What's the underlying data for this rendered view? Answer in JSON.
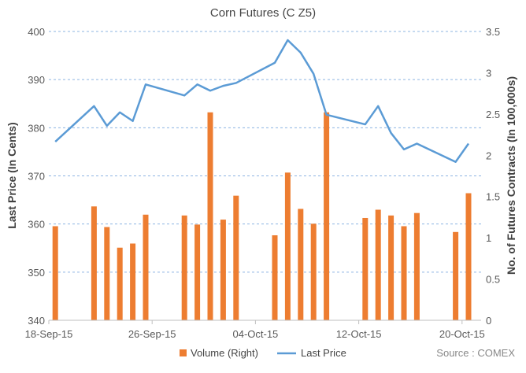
{
  "chart_data": {
    "type": "bar+line",
    "title": "Corn Futures  (C Z5)",
    "ylabel_left": "Last Price (In Cents)",
    "ylabel_right": "No. of Futures Contracts (In 100,000s)",
    "ylim_left": [
      340,
      400
    ],
    "ylim_right": [
      0,
      3.5
    ],
    "yticks_left": [
      "340",
      "350",
      "360",
      "370",
      "380",
      "390",
      "400"
    ],
    "yticks_right": [
      "0",
      "0.5",
      "1",
      "1.5",
      "2",
      "2.5",
      "3",
      "3.5"
    ],
    "xtick_labels": [
      "18-Sep-15",
      "26-Sep-15",
      "04-Oct-15",
      "12-Oct-15",
      "20-Oct-15"
    ],
    "x": [
      "18-Sep-15",
      "21-Sep-15",
      "22-Sep-15",
      "23-Sep-15",
      "24-Sep-15",
      "25-Sep-15",
      "28-Sep-15",
      "29-Sep-15",
      "30-Sep-15",
      "01-Oct-15",
      "02-Oct-15",
      "05-Oct-15",
      "06-Oct-15",
      "07-Oct-15",
      "08-Oct-15",
      "09-Oct-15",
      "12-Oct-15",
      "13-Oct-15",
      "14-Oct-15",
      "15-Oct-15",
      "16-Oct-15",
      "19-Oct-15",
      "20-Oct-15"
    ],
    "day_offsets": [
      0,
      3,
      4,
      5,
      6,
      7,
      10,
      11,
      12,
      13,
      14,
      17,
      18,
      19,
      20,
      21,
      24,
      25,
      26,
      27,
      28,
      31,
      32
    ],
    "series": [
      {
        "name": "Volume (Right)",
        "type": "bar",
        "axis": "right",
        "color": "#ED7D31",
        "values": [
          1.14,
          1.38,
          1.13,
          0.88,
          0.93,
          1.28,
          1.27,
          1.16,
          2.52,
          1.22,
          1.51,
          1.03,
          1.79,
          1.35,
          1.17,
          2.52,
          1.24,
          1.34,
          1.27,
          1.14,
          1.3,
          1.07,
          1.54
        ]
      },
      {
        "name": "Last Price",
        "type": "line",
        "axis": "left",
        "color": "#5B9BD5",
        "values": [
          377.1,
          384.5,
          380.4,
          383.2,
          381.4,
          389.0,
          386.7,
          389.0,
          387.7,
          388.7,
          389.3,
          393.5,
          398.2,
          395.6,
          391.2,
          382.7,
          380.7,
          384.5,
          378.9,
          375.5,
          376.7,
          372.9,
          376.7
        ]
      }
    ],
    "legend_position": "bottom",
    "grid": true,
    "source": "Source : COMEX"
  }
}
